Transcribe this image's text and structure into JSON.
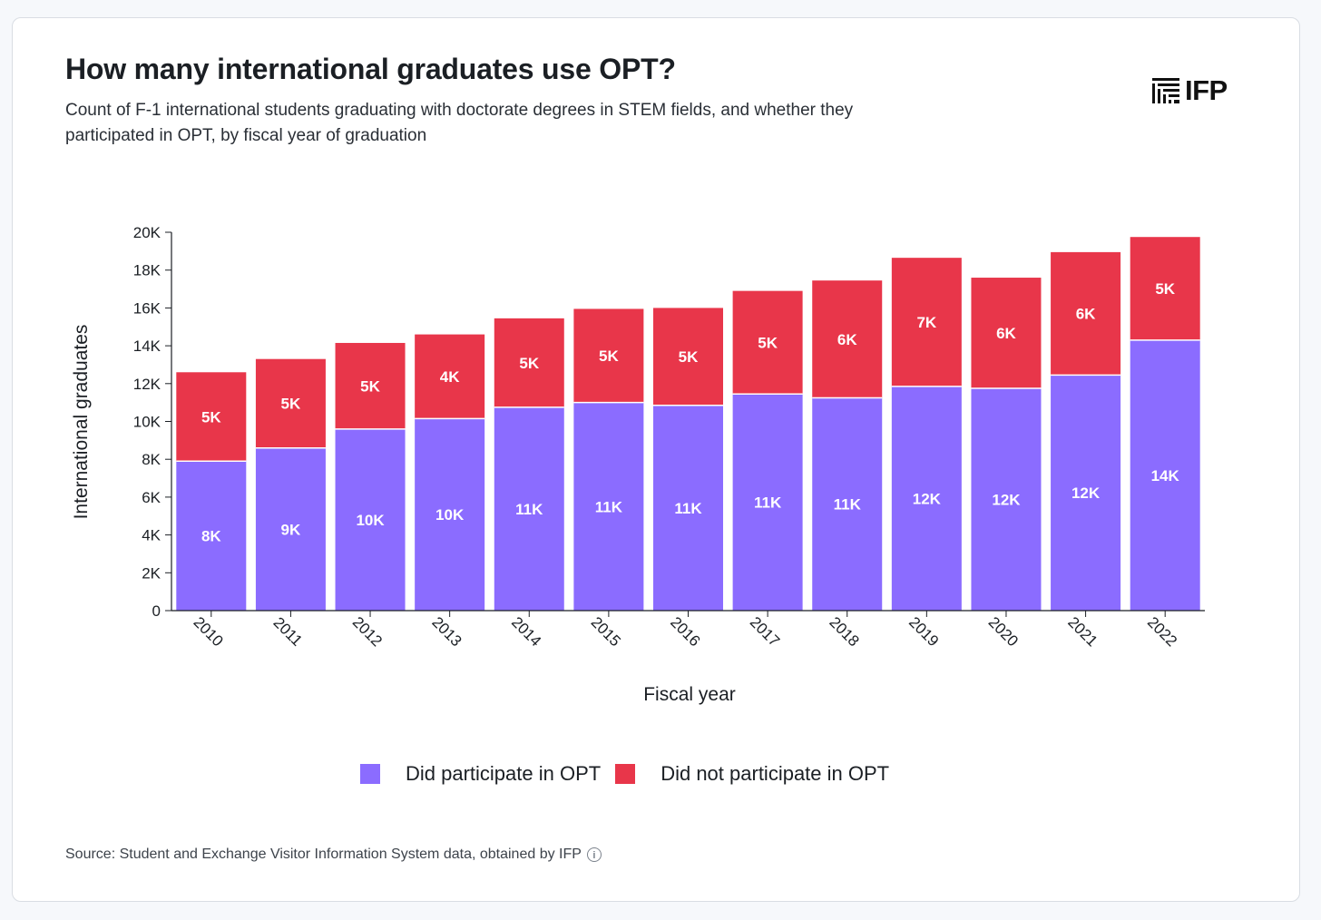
{
  "header": {
    "title": "How many international graduates use OPT?",
    "subtitle": "Count of F-1 international students graduating with doctorate degrees in STEM fields, and whether they participated in OPT, by fiscal year of graduation"
  },
  "logo": {
    "text": "IFP",
    "icon": "ifp-lines-logo-icon"
  },
  "source": {
    "text": "Source: Student and Exchange Visitor Information System data, obtained by IFP",
    "icon": "info-icon"
  },
  "colors": {
    "participate": "#8b6cff",
    "not_participate": "#e8364a",
    "axis": "#1b1f24"
  },
  "chart_data": {
    "type": "bar",
    "stacked": true,
    "title": "How many international graduates use OPT?",
    "xlabel": "Fiscal year",
    "ylabel": "International graduates",
    "ylim": [
      0,
      20000
    ],
    "yticks": [
      0,
      2000,
      4000,
      6000,
      8000,
      10000,
      12000,
      14000,
      16000,
      18000,
      20000
    ],
    "ytick_labels": [
      "0",
      "2K",
      "4K",
      "6K",
      "8K",
      "10K",
      "12K",
      "14K",
      "16K",
      "18K",
      "20K"
    ],
    "categories": [
      "2010",
      "2011",
      "2012",
      "2013",
      "2014",
      "2015",
      "2016",
      "2017",
      "2018",
      "2019",
      "2020",
      "2021",
      "2022"
    ],
    "series": [
      {
        "name": "Did participate in OPT",
        "values": [
          7900,
          8600,
          9600,
          10150,
          10750,
          11000,
          10850,
          11450,
          11250,
          11850,
          11750,
          12450,
          14300
        ],
        "labels": [
          "8K",
          "9K",
          "10K",
          "10K",
          "11K",
          "11K",
          "11K",
          "11K",
          "11K",
          "12K",
          "12K",
          "12K",
          "14K"
        ]
      },
      {
        "name": "Did not participate in OPT",
        "values": [
          4700,
          4700,
          4550,
          4450,
          4700,
          4950,
          5150,
          5450,
          6200,
          6800,
          5850,
          6500,
          5450
        ],
        "labels": [
          "5K",
          "5K",
          "5K",
          "4K",
          "5K",
          "5K",
          "5K",
          "5K",
          "6K",
          "7K",
          "6K",
          "6K",
          "5K"
        ]
      }
    ],
    "legend": "bottom"
  }
}
